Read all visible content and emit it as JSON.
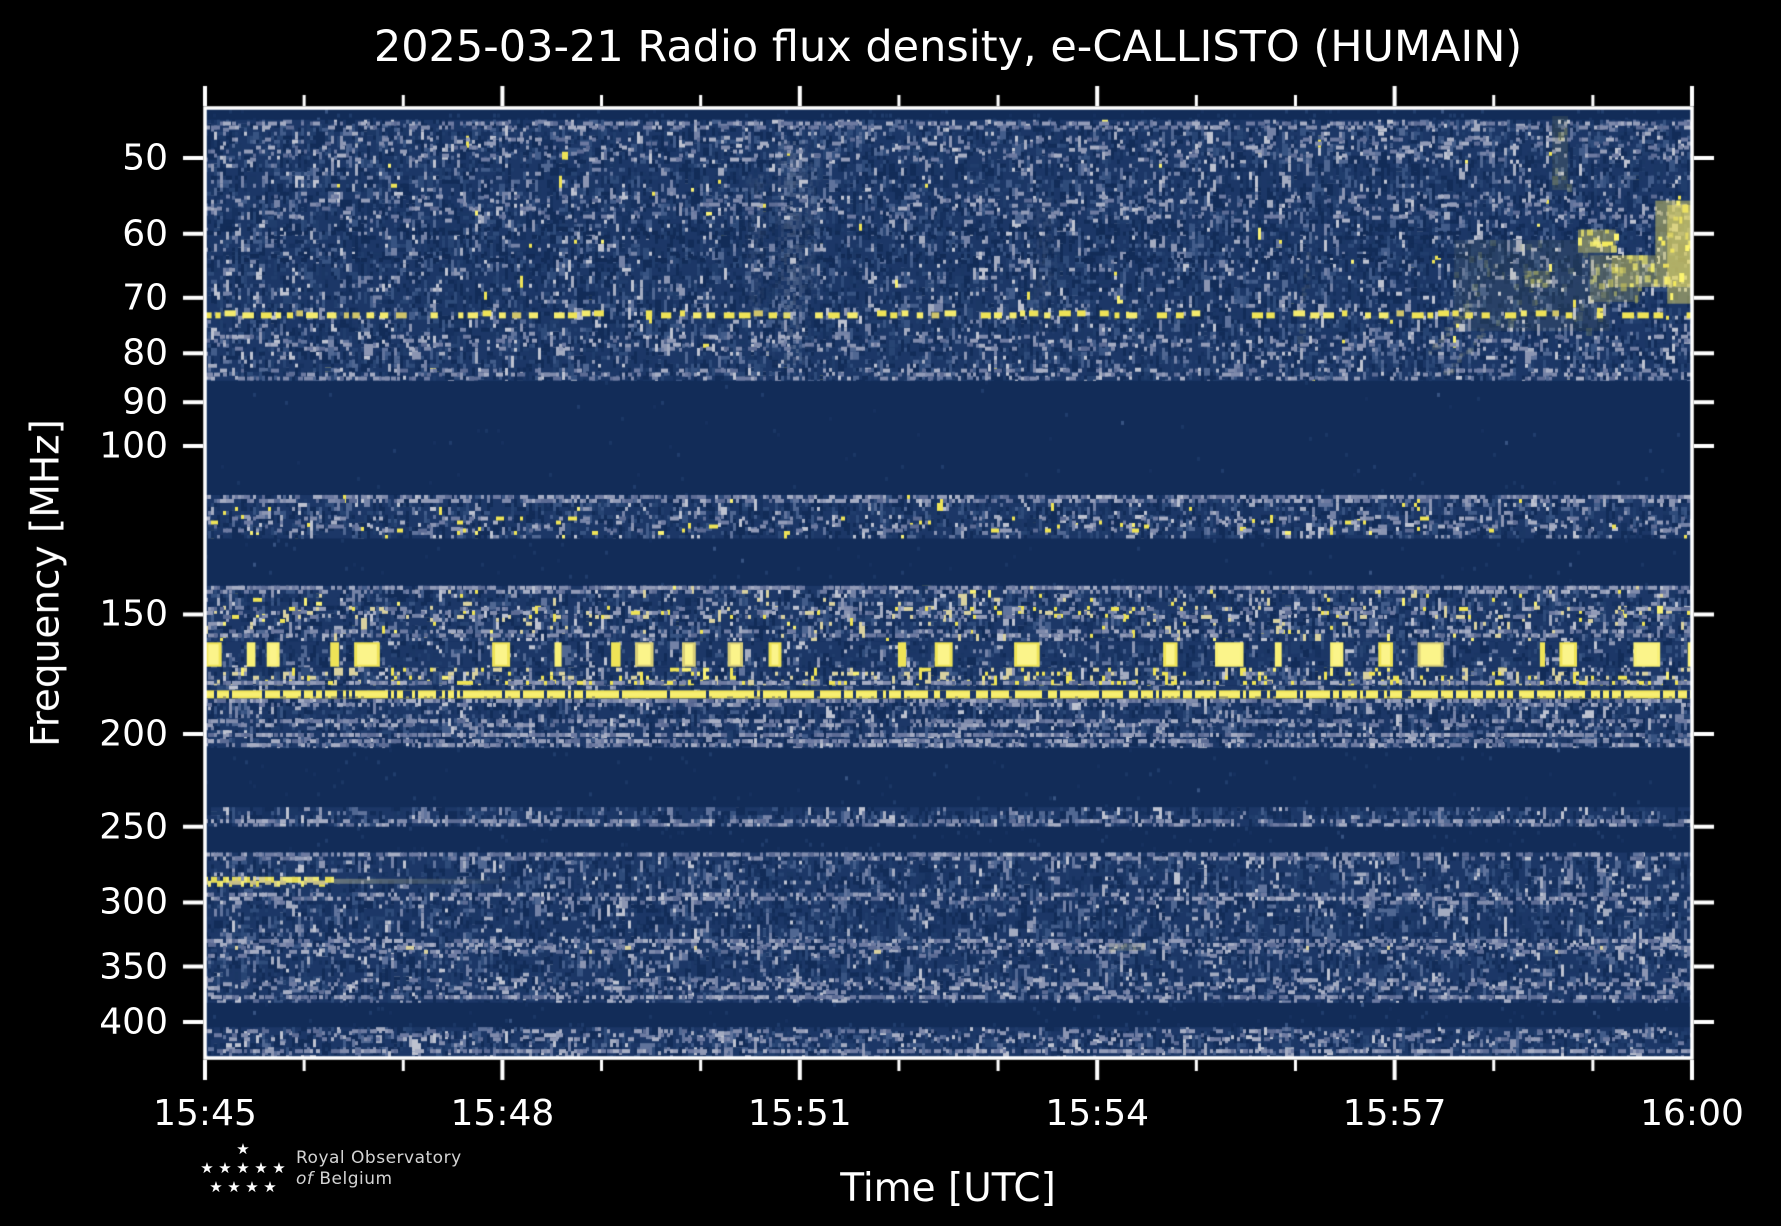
{
  "title": "2025-03-21 Radio flux density, e-CALLISTO (HUMAIN)",
  "xlabel": "Time [UTC]",
  "ylabel": "Frequency [MHz]",
  "logo": {
    "line1": "Royal Observatory",
    "line2_of": "of",
    "line2_rest": "Belgium"
  },
  "chart_data": {
    "type": "heatmap",
    "subtype": "radio_spectrogram",
    "title": "2025-03-21 Radio flux density, e-CALLISTO (HUMAIN)",
    "date": "2025-03-21",
    "instrument": "e-CALLISTO",
    "station": "HUMAIN",
    "xlabel": "Time [UTC]",
    "ylabel": "Frequency [MHz]",
    "x_ticks": [
      "15:45",
      "15:48",
      "15:51",
      "15:54",
      "15:57",
      "16:00"
    ],
    "x_minor_tick_minutes": 1,
    "x_range_minutes": 15,
    "y_scale": "log",
    "y_ticks_mhz": [
      50,
      60,
      70,
      80,
      90,
      100,
      150,
      200,
      250,
      300,
      350,
      400
    ],
    "y_range_mhz": [
      44.5,
      435
    ],
    "grid": false,
    "legend": "none",
    "colormap": {
      "background": "#000000",
      "quiet": "#122c58",
      "noise_base": "#1c3767",
      "noise_shades": [
        "#122c58",
        "#16315f",
        "#1b3765",
        "#203d6c",
        "#274473",
        "#2e4b7a",
        "#375382",
        "#425c8a",
        "#506792",
        "#60739c",
        "#7482a6",
        "#8b95b2",
        "#a3abc0",
        "#bdc2d0"
      ],
      "gray_rfi": [
        "#5c6b94",
        "#6d7aa1",
        "#7f8aab",
        "#929bb7",
        "#a6adc3"
      ],
      "cream": "#d9d1a0",
      "yellow": "#eee357",
      "yellow_bright": "#f8f077"
    },
    "bands": [
      {
        "f1": 44.5,
        "f2": 45.6,
        "style": "quiet"
      },
      {
        "f1": 45.6,
        "f2": 85.5,
        "style": "noise",
        "density": 0.85,
        "bright": 0.5,
        "yellow": 0.004,
        "stripes": [
          {
            "f1": 45.8,
            "f2": 46.6,
            "boost": 0.3
          },
          {
            "f1": 47.6,
            "f2": 50.3,
            "boost": 0.3
          },
          {
            "f1": 54.6,
            "f2": 58.0,
            "boost": 0.28
          },
          {
            "f1": 59.0,
            "f2": 60.5,
            "boost": -0.25
          },
          {
            "f1": 63.0,
            "f2": 64.2,
            "boost": -0.2
          },
          {
            "f1": 76.5,
            "f2": 79.5,
            "boost": 0.15
          },
          {
            "f1": 83.0,
            "f2": 85.3,
            "boost": 0.25
          }
        ]
      },
      {
        "f1": 85.5,
        "f2": 112.5,
        "style": "quiet"
      },
      {
        "f1": 112.5,
        "f2": 125,
        "style": "noise",
        "density": 0.8,
        "bright": 0.45,
        "yellow": 0.03,
        "stripes": [
          {
            "f1": 112.5,
            "f2": 114.5,
            "boost": 0.45
          },
          {
            "f1": 118.5,
            "f2": 123,
            "boost": 0.12,
            "yellow": 0.1
          }
        ]
      },
      {
        "f1": 125,
        "f2": 140,
        "style": "quiet"
      },
      {
        "f1": 140,
        "f2": 160,
        "style": "noise",
        "density": 0.85,
        "bright": 0.55,
        "yellow": 0.03,
        "cream": 0.04,
        "stripes": [
          {
            "f1": 140,
            "f2": 141.8,
            "boost": 0.45
          },
          {
            "f1": 147.3,
            "f2": 151.8,
            "boost": 0.3,
            "yellow": 0.1,
            "cream": 0.15
          },
          {
            "f1": 155.5,
            "f2": 158.5,
            "boost": 0.12
          }
        ]
      },
      {
        "f1": 160,
        "f2": 170.5,
        "style": "bursty"
      },
      {
        "f1": 170.5,
        "f2": 178,
        "style": "noise",
        "density": 0.95,
        "bright": 0.65,
        "yellow": 0.1,
        "cream": 0.18,
        "stripes": [
          {
            "f1": 176,
            "f2": 178,
            "boost": 0.3,
            "yellow": 0.15
          }
        ]
      },
      {
        "f1": 178,
        "f2": 180.2,
        "style": "noise",
        "density": 0.6,
        "bright": 0.4
      },
      {
        "f1": 183.5,
        "f2": 207,
        "style": "noise",
        "density": 0.8,
        "bright": 0.5,
        "stripes": [
          {
            "f1": 183.8,
            "f2": 186.2,
            "boost": 0.4
          },
          {
            "f1": 193,
            "f2": 196,
            "boost": 0.28
          },
          {
            "f1": 199.5,
            "f2": 201.5,
            "boost": 0.28
          },
          {
            "f1": 202.5,
            "f2": 206,
            "boost": 0.42
          }
        ]
      },
      {
        "f1": 207,
        "f2": 238.5,
        "style": "quiet"
      },
      {
        "f1": 238.5,
        "f2": 250,
        "style": "noise",
        "density": 0.75,
        "bright": 0.45,
        "stripes": [
          {
            "f1": 245.5,
            "f2": 249.5,
            "boost": 0.35
          }
        ]
      },
      {
        "f1": 250,
        "f2": 266,
        "style": "quiet"
      },
      {
        "f1": 266,
        "f2": 382,
        "style": "noise",
        "density": 0.8,
        "bright": 0.5,
        "stripes": [
          {
            "f1": 266,
            "f2": 269.5,
            "boost": 0.35
          },
          {
            "f1": 293,
            "f2": 299.5,
            "boost": 0.38
          },
          {
            "f1": 327.5,
            "f2": 333,
            "boost": 0.42
          },
          {
            "f1": 333,
            "f2": 341,
            "boost": 0.2,
            "cream": 0.08
          },
          {
            "f1": 360,
            "f2": 372,
            "boost": 0.4
          },
          {
            "f1": 375,
            "f2": 379,
            "boost": 0.18
          }
        ]
      },
      {
        "f1": 382,
        "f2": 405,
        "style": "quiet"
      },
      {
        "f1": 405,
        "f2": 435,
        "style": "noise",
        "density": 0.8,
        "bright": 0.5,
        "stripes": [
          {
            "f1": 407,
            "f2": 420,
            "boost": 0.3
          },
          {
            "f1": 427,
            "f2": 431,
            "boost": 0.2
          }
        ]
      }
    ],
    "rfi_lines": [
      {
        "freq_mhz": 73.2,
        "style": "dashed",
        "color": "#eee357"
      },
      {
        "freq_mhz": 181.8,
        "style": "solid",
        "color": "#f1e65c"
      }
    ],
    "events": [
      {
        "label": "bright burst cluster near end of interval",
        "t1_min": 12.6,
        "t2_min": 15.0,
        "patches": [
          {
            "t1": 12.6,
            "t2": 14.17,
            "f1": 60.9,
            "f2": 75.8,
            "a": 0.13
          },
          {
            "t1": 13.59,
            "t2": 13.75,
            "f1": 45.2,
            "f2": 54.0,
            "a": 0.22
          },
          {
            "t1": 13.31,
            "t2": 13.57,
            "f1": 65.6,
            "f2": 68.2,
            "a": 0.35
          },
          {
            "t1": 13.85,
            "t2": 14.23,
            "f1": 59.4,
            "f2": 62.8,
            "a": 0.85
          },
          {
            "t1": 13.97,
            "t2": 14.47,
            "f1": 63.2,
            "f2": 70.7,
            "a": 0.4
          },
          {
            "t1": 14.19,
            "t2": 14.63,
            "f1": 63.2,
            "f2": 68.2,
            "a": 0.7
          },
          {
            "t1": 14.63,
            "t2": 15.0,
            "f1": 55.4,
            "f2": 68.2,
            "a": 0.95
          },
          {
            "t1": 14.75,
            "t2": 15.0,
            "f1": 56,
            "f2": 71,
            "a": 1.0
          }
        ]
      },
      {
        "label": "drifting wisps",
        "wisps": [
          {
            "t1": 12.34,
            "f1": 79.5,
            "t2": 12.76,
            "f2": 70.7,
            "a": 0.3
          },
          {
            "t1": 12.5,
            "f1": 84,
            "t2": 12.9,
            "f2": 75,
            "a": 0.22
          },
          {
            "t1": 11.0,
            "f1": 78,
            "t2": 11.15,
            "f2": 62,
            "a": 0.14
          }
        ]
      },
      {
        "label": "faint broadband plumes",
        "plumes": [
          {
            "t": 5.9,
            "f1": 48,
            "f2": 82,
            "a": 0.32,
            "sigma": 9
          },
          {
            "t": 5.55,
            "f1": 52,
            "f2": 72,
            "a": 0.14,
            "sigma": 7
          },
          {
            "t": 8.45,
            "f1": 55,
            "f2": 76,
            "a": 0.15,
            "sigma": 8
          },
          {
            "t": 6.1,
            "f1": 50,
            "f2": 70,
            "a": 0.12,
            "sigma": 6
          }
        ]
      },
      {
        "label": "narrowband streak ~283 MHz",
        "t1": 0.0,
        "t2": 1.3,
        "tail_t2": 3.2,
        "f1": 282,
        "f2": 287
      },
      {
        "label": "cream smudge ~334 MHz",
        "t": 9.3,
        "f1": 331,
        "f2": 337,
        "a": 0.2
      }
    ]
  }
}
